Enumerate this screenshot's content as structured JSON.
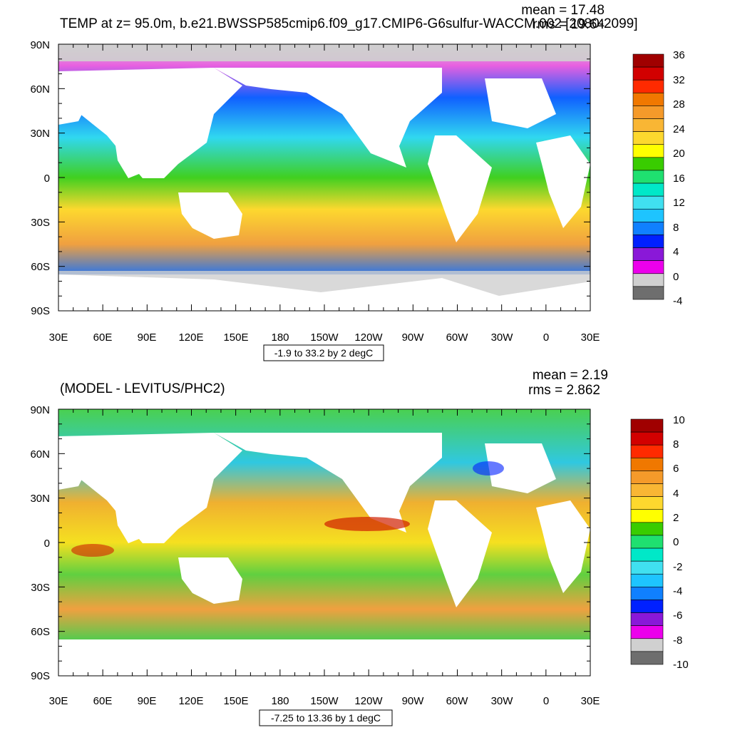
{
  "panels": [
    {
      "title": "TEMP at z=  95.0m, b.e21.BWSSP585cmip6.f09_g17.CMIP6-G6sulfur-WACCM.002 [2080-2099]",
      "mean": "mean = 17.48",
      "rms": "rms = 19.64",
      "contour_info": "-1.9 to 33.2 by 2 degC",
      "colorbar_labels": [
        "36",
        "32",
        "28",
        "24",
        "20",
        "16",
        "12",
        "8",
        "4",
        "0",
        "-4"
      ],
      "colorbar_colors": [
        "#a00000",
        "#d20000",
        "#ff2a00",
        "#f07800",
        "#f59a2a",
        "#f9b634",
        "#fdd82e",
        "#ffff00",
        "#39cc00",
        "#1fe070",
        "#00e8c8",
        "#40e0f0",
        "#1ec4ff",
        "#1080ff",
        "#0020ff",
        "#8a18d8",
        "#ec00ec",
        "#d0d0d0",
        "#6e6e6e"
      ]
    },
    {
      "title": "(MODEL - LEVITUS/PHC2)",
      "mean": "mean = 2.19",
      "rms": "rms = 2.862",
      "contour_info": "-7.25 to 13.36 by 1 degC",
      "colorbar_labels": [
        "10",
        "8",
        "6",
        "4",
        "2",
        "0",
        "-2",
        "-4",
        "-6",
        "-8",
        "-10"
      ],
      "colorbar_colors": [
        "#a00000",
        "#d20000",
        "#ff2a00",
        "#f07800",
        "#f59a2a",
        "#f9b634",
        "#fdd82e",
        "#ffff00",
        "#39cc00",
        "#1fe070",
        "#00e8c8",
        "#40e0f0",
        "#1ec4ff",
        "#1080ff",
        "#0020ff",
        "#8a18d8",
        "#ec00ec",
        "#d0d0d0",
        "#6e6e6e"
      ]
    }
  ],
  "lat_labels": [
    "90N",
    "60N",
    "30N",
    "0",
    "30S",
    "60S",
    "90S"
  ],
  "lon_labels": [
    "30E",
    "60E",
    "90E",
    "120E",
    "150E",
    "180",
    "150W",
    "120W",
    "90W",
    "60W",
    "30W",
    "0",
    "30E"
  ]
}
